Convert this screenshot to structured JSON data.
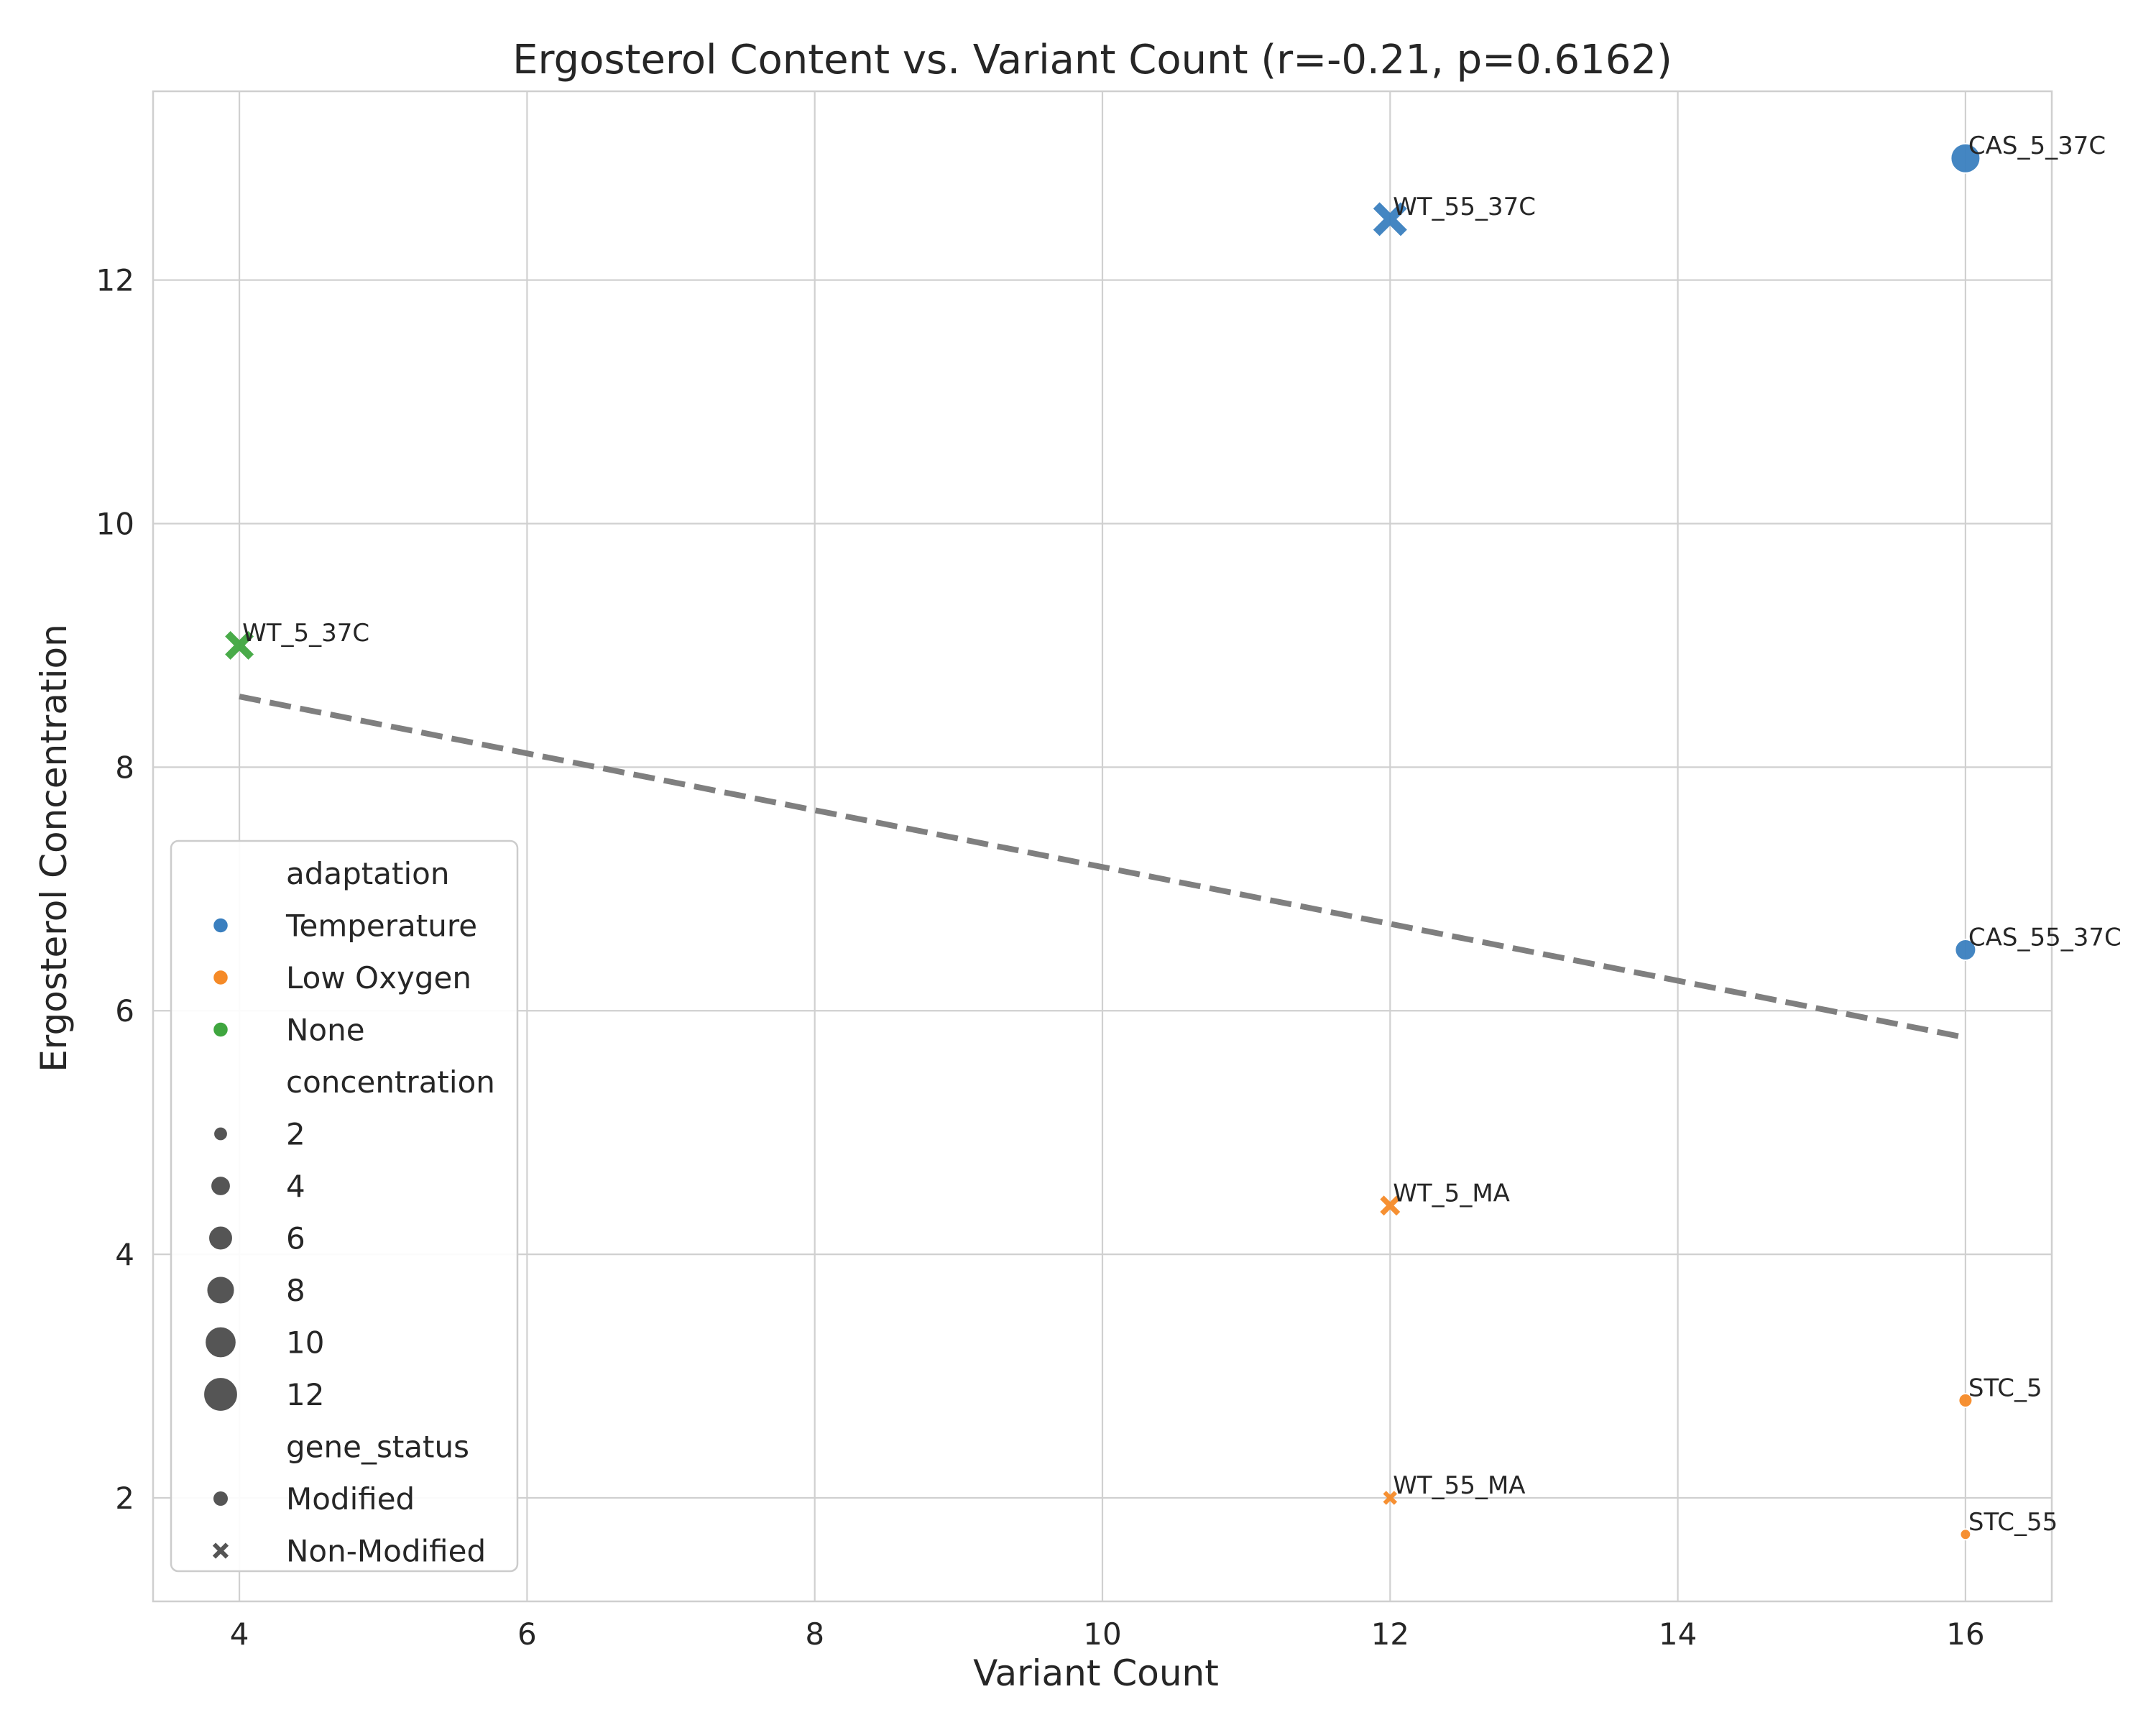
{
  "chart_data": {
    "type": "scatter",
    "title": "Ergosterol Content vs. Variant Count (r=-0.21, p=0.6162)",
    "xlabel": "Variant Count",
    "ylabel": "Ergosterol Concentration",
    "xlim": [
      3.4,
      16.6
    ],
    "ylim": [
      1.15,
      13.55
    ],
    "xticks": [
      4,
      6,
      8,
      10,
      12,
      14,
      16
    ],
    "yticks": [
      2,
      4,
      6,
      8,
      10,
      12
    ],
    "grid": true,
    "legend_position": "lower-left",
    "colors": {
      "Temperature": "#3a7fbf",
      "Low Oxygen": "#f58a27",
      "None": "#3fa63f",
      "legend_marker": "#555555",
      "trend_line": "#7f7f7f",
      "grid": "#d0d0d0",
      "frame": "#cfcfcf"
    },
    "points": [
      {
        "label": "CAS_5_37C",
        "x": 16,
        "y": 13.0,
        "adaptation": "Temperature",
        "gene_status": "Modified",
        "concentration": 13.0
      },
      {
        "label": "WT_55_37C",
        "x": 12,
        "y": 12.5,
        "adaptation": "Temperature",
        "gene_status": "Non-Modified",
        "concentration": 12.5
      },
      {
        "label": "WT_5_37C",
        "x": 4,
        "y": 9.0,
        "adaptation": "None",
        "gene_status": "Non-Modified",
        "concentration": 9.0
      },
      {
        "label": "CAS_55_37C",
        "x": 16,
        "y": 6.5,
        "adaptation": "Temperature",
        "gene_status": "Modified",
        "concentration": 6.5
      },
      {
        "label": "WT_5_MA",
        "x": 12,
        "y": 4.4,
        "adaptation": "Low Oxygen",
        "gene_status": "Non-Modified",
        "concentration": 4.4
      },
      {
        "label": "STC_5",
        "x": 16,
        "y": 2.8,
        "adaptation": "Low Oxygen",
        "gene_status": "Modified",
        "concentration": 2.8
      },
      {
        "label": "WT_55_MA",
        "x": 12,
        "y": 2.0,
        "adaptation": "Low Oxygen",
        "gene_status": "Non-Modified",
        "concentration": 2.0
      },
      {
        "label": "STC_55",
        "x": 16,
        "y": 1.7,
        "adaptation": "Low Oxygen",
        "gene_status": "Modified",
        "concentration": 1.7
      }
    ],
    "trend_line": {
      "x": [
        4,
        16
      ],
      "y": [
        8.58,
        5.78
      ]
    },
    "legend": {
      "adaptation_title": "adaptation",
      "adaptation": [
        "Temperature",
        "Low Oxygen",
        "None"
      ],
      "concentration_title": "concentration",
      "concentration": [
        "2",
        "4",
        "6",
        "8",
        "10",
        "12"
      ],
      "gene_status_title": "gene_status",
      "gene_status": [
        "Modified",
        "Non-Modified"
      ]
    }
  }
}
